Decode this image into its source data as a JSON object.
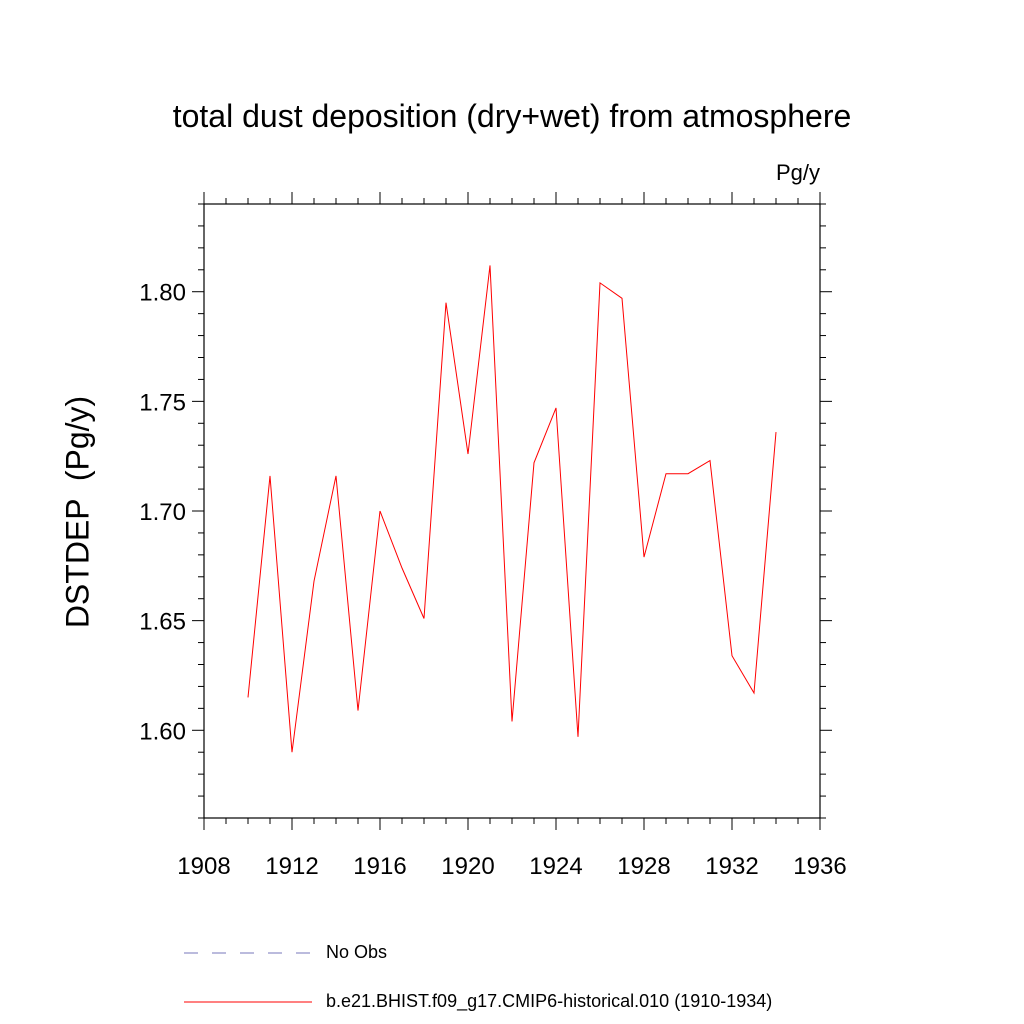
{
  "chart_data": {
    "type": "line",
    "title": "total dust deposition (dry+wet) from atmosphere",
    "units_label": "Pg/y",
    "ylabel": "DSTDEP  (Pg/y)",
    "xlabel": "",
    "xlim": [
      1908,
      1936
    ],
    "ylim": [
      1.56,
      1.84
    ],
    "x_ticks": [
      1908,
      1912,
      1916,
      1920,
      1924,
      1928,
      1932,
      1936
    ],
    "y_ticks": [
      1.6,
      1.65,
      1.7,
      1.75,
      1.8
    ],
    "x_tick_labels": [
      "1908",
      "1912",
      "1916",
      "1920",
      "1924",
      "1928",
      "1932",
      "1936"
    ],
    "y_tick_labels": [
      "1.60",
      "1.65",
      "1.70",
      "1.75",
      "1.80"
    ],
    "grid": false,
    "legend_position": "bottom",
    "series": [
      {
        "name": "b.e21.BHIST.f09_g17.CMIP6-historical.010 (1910-1934)",
        "color": "#ff0000",
        "x": [
          1910,
          1911,
          1912,
          1913,
          1914,
          1915,
          1916,
          1917,
          1918,
          1919,
          1920,
          1921,
          1922,
          1923,
          1924,
          1925,
          1926,
          1927,
          1928,
          1929,
          1930,
          1931,
          1932,
          1933,
          1934
        ],
        "values": [
          1.615,
          1.716,
          1.59,
          1.668,
          1.716,
          1.609,
          1.7,
          1.674,
          1.651,
          1.795,
          1.726,
          1.812,
          1.604,
          1.722,
          1.747,
          1.597,
          1.804,
          1.797,
          1.679,
          1.717,
          1.717,
          1.723,
          1.634,
          1.617,
          1.736
        ]
      }
    ],
    "legend": [
      {
        "label": "No Obs",
        "color": "#7777bb",
        "style": "dashed"
      },
      {
        "label": "b.e21.BHIST.f09_g17.CMIP6-historical.010 (1910-1934)",
        "color": "#ff0000",
        "style": "solid"
      }
    ]
  }
}
